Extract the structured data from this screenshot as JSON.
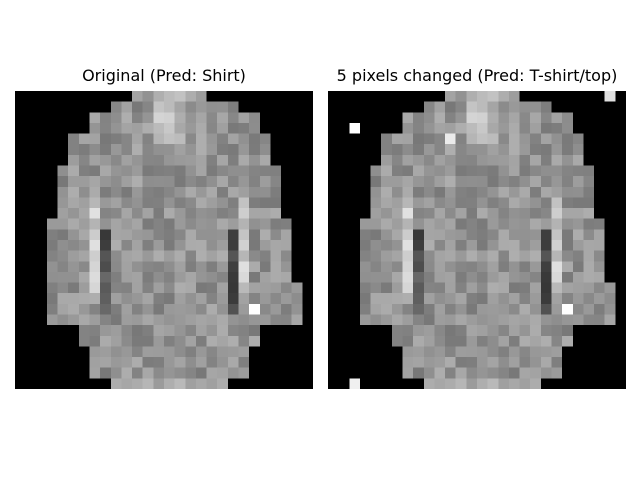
{
  "panels": [
    {
      "title": "Original (Pred: Shirt)"
    },
    {
      "title": "5 pixels changed (Pred: T-shirt/top)"
    }
  ]
}
